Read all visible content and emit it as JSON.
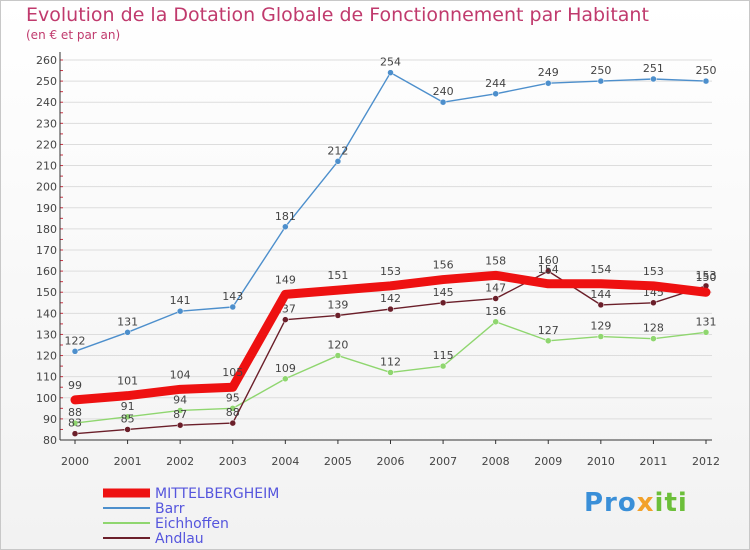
{
  "title": "Evolution de la Dotation Globale de Fonctionnement par Habitant",
  "subtitle": "(en € et par an)",
  "logo": {
    "text": "Proxiti",
    "part1": "Pro",
    "part2": "x",
    "part3": "iti"
  },
  "colors": {
    "title": "#c03a6d",
    "axis": "#333333",
    "grid": "#dddddd"
  },
  "chart_data": {
    "type": "line",
    "title": "Evolution de la Dotation Globale de Fonctionnement par Habitant",
    "subtitle": "(en € et par an)",
    "xlabel": "",
    "ylabel": "",
    "ylim": [
      80,
      260
    ],
    "yticks": [
      80,
      90,
      100,
      110,
      120,
      130,
      140,
      150,
      160,
      170,
      180,
      190,
      200,
      210,
      220,
      230,
      240,
      250,
      260
    ],
    "categories": [
      "2000",
      "2001",
      "2002",
      "2003",
      "2004",
      "2005",
      "2006",
      "2007",
      "2008",
      "2009",
      "2010",
      "2011",
      "2012"
    ],
    "grid": true,
    "legend_position": "bottom-left",
    "series": [
      {
        "name": "Barr",
        "color": "#4d8fcc",
        "values": [
          122,
          131,
          141,
          143,
          181,
          212,
          254,
          240,
          244,
          249,
          250,
          251,
          250
        ],
        "labels": [
          "122",
          "131",
          "141",
          "143",
          "181",
          "212",
          "254",
          "240",
          "244",
          "249",
          "250",
          "251",
          "250"
        ]
      },
      {
        "name": "Eichhoffen",
        "color": "#8fd66f",
        "values": [
          88,
          91,
          94,
          95,
          109,
          120,
          112,
          115,
          136,
          127,
          129,
          128,
          131
        ],
        "labels": [
          "88",
          "91",
          "94",
          "95",
          "109",
          "120",
          "112",
          "115",
          "136",
          "127",
          "129",
          "128",
          "131"
        ]
      },
      {
        "name": "Andlau",
        "color": "#6b1f2a",
        "values": [
          83,
          85,
          87,
          88,
          137,
          139,
          142,
          145,
          147,
          160,
          144,
          145,
          153
        ],
        "labels": [
          "83",
          "85",
          "87",
          "88",
          "137",
          "139",
          "142",
          "145",
          "147",
          "160",
          "144",
          "145",
          "153"
        ]
      },
      {
        "name": "MITTELBERGHEIM",
        "color": "#ee1111",
        "bold": true,
        "values": [
          99,
          101,
          104,
          105,
          149,
          151,
          153,
          156,
          158,
          154,
          154,
          153,
          150
        ],
        "labels": [
          "99",
          "101",
          "104",
          "105",
          "149",
          "151",
          "153",
          "156",
          "158",
          "154",
          "154",
          "153",
          "150"
        ]
      }
    ],
    "legend": [
      {
        "name": "MITTELBERGHEIM",
        "color": "#ee1111",
        "text_color": "#5555dd",
        "bold": true
      },
      {
        "name": "Barr",
        "color": "#4d8fcc",
        "text_color": "#5555dd"
      },
      {
        "name": "Eichhoffen",
        "color": "#8fd66f",
        "text_color": "#5555dd"
      },
      {
        "name": "Andlau",
        "color": "#6b1f2a",
        "text_color": "#5555dd"
      }
    ]
  }
}
